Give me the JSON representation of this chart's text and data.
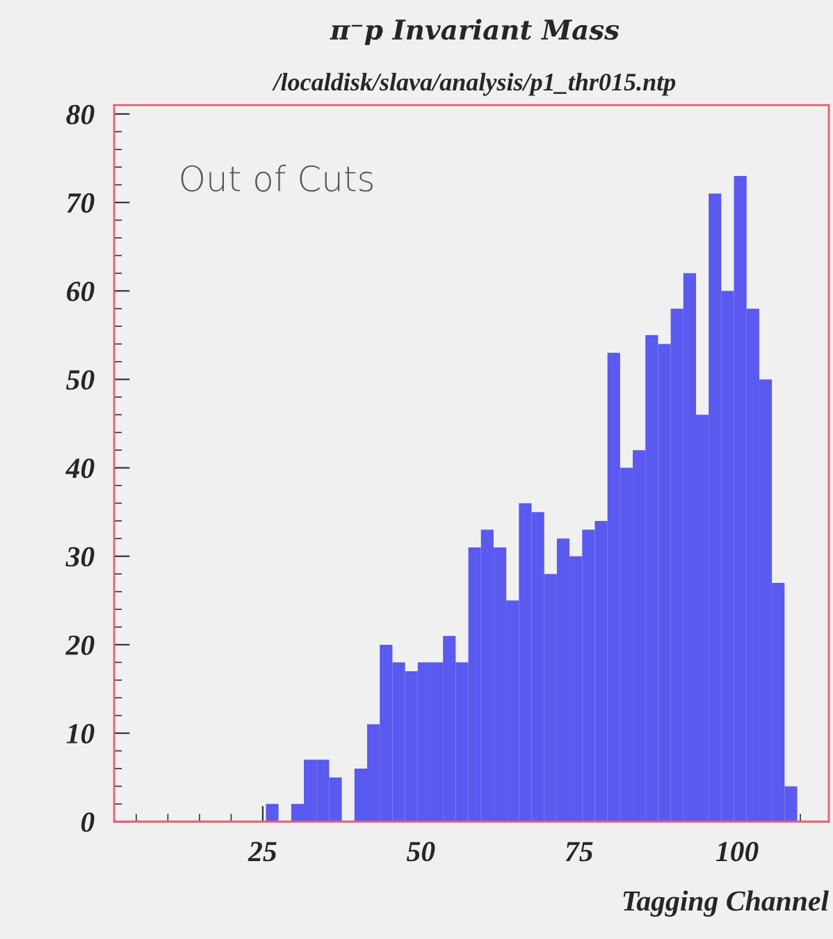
{
  "chart_data": {
    "type": "histogram",
    "title": "π⁻p Invariant Mass",
    "subtitle": "/localdisk/slava/analysis/p1_thr015.ntp",
    "xlabel": "Tagging Channel",
    "annotations": [
      "Out of Cuts"
    ],
    "bins": [
      25.5,
      27.5,
      29.5,
      31.5,
      33.5,
      35.5,
      37.5,
      39.5,
      41.5,
      43.5,
      45.5,
      47.5,
      49.5,
      51.5,
      53.5,
      55.5,
      57.5,
      59.5,
      61.5,
      63.5,
      65.5,
      67.5,
      69.5,
      71.5,
      73.5,
      75.5,
      77.5,
      79.5,
      81.5,
      83.5,
      85.5,
      87.5,
      89.5,
      91.5,
      93.5,
      95.5,
      97.5,
      99.5,
      101.5,
      103.5,
      105.5,
      107.5,
      109.5
    ],
    "values": [
      2,
      0,
      2,
      7,
      7,
      5,
      0,
      6,
      11,
      20,
      18,
      17,
      18,
      18,
      21,
      18,
      31,
      33,
      31,
      25,
      36,
      35,
      28,
      32,
      30,
      33,
      34,
      53,
      40,
      42,
      55,
      54,
      58,
      62,
      46,
      71,
      60,
      73,
      58,
      50,
      27,
      4
    ],
    "color": "#5a5af0",
    "xlim": [
      1.5,
      114.5
    ],
    "ylim": [
      0,
      81
    ],
    "xticks": [
      25,
      50,
      75,
      100
    ],
    "yticks": [
      0,
      10,
      20,
      30,
      40,
      50,
      60,
      70,
      80
    ],
    "grid": false,
    "legend": false
  }
}
